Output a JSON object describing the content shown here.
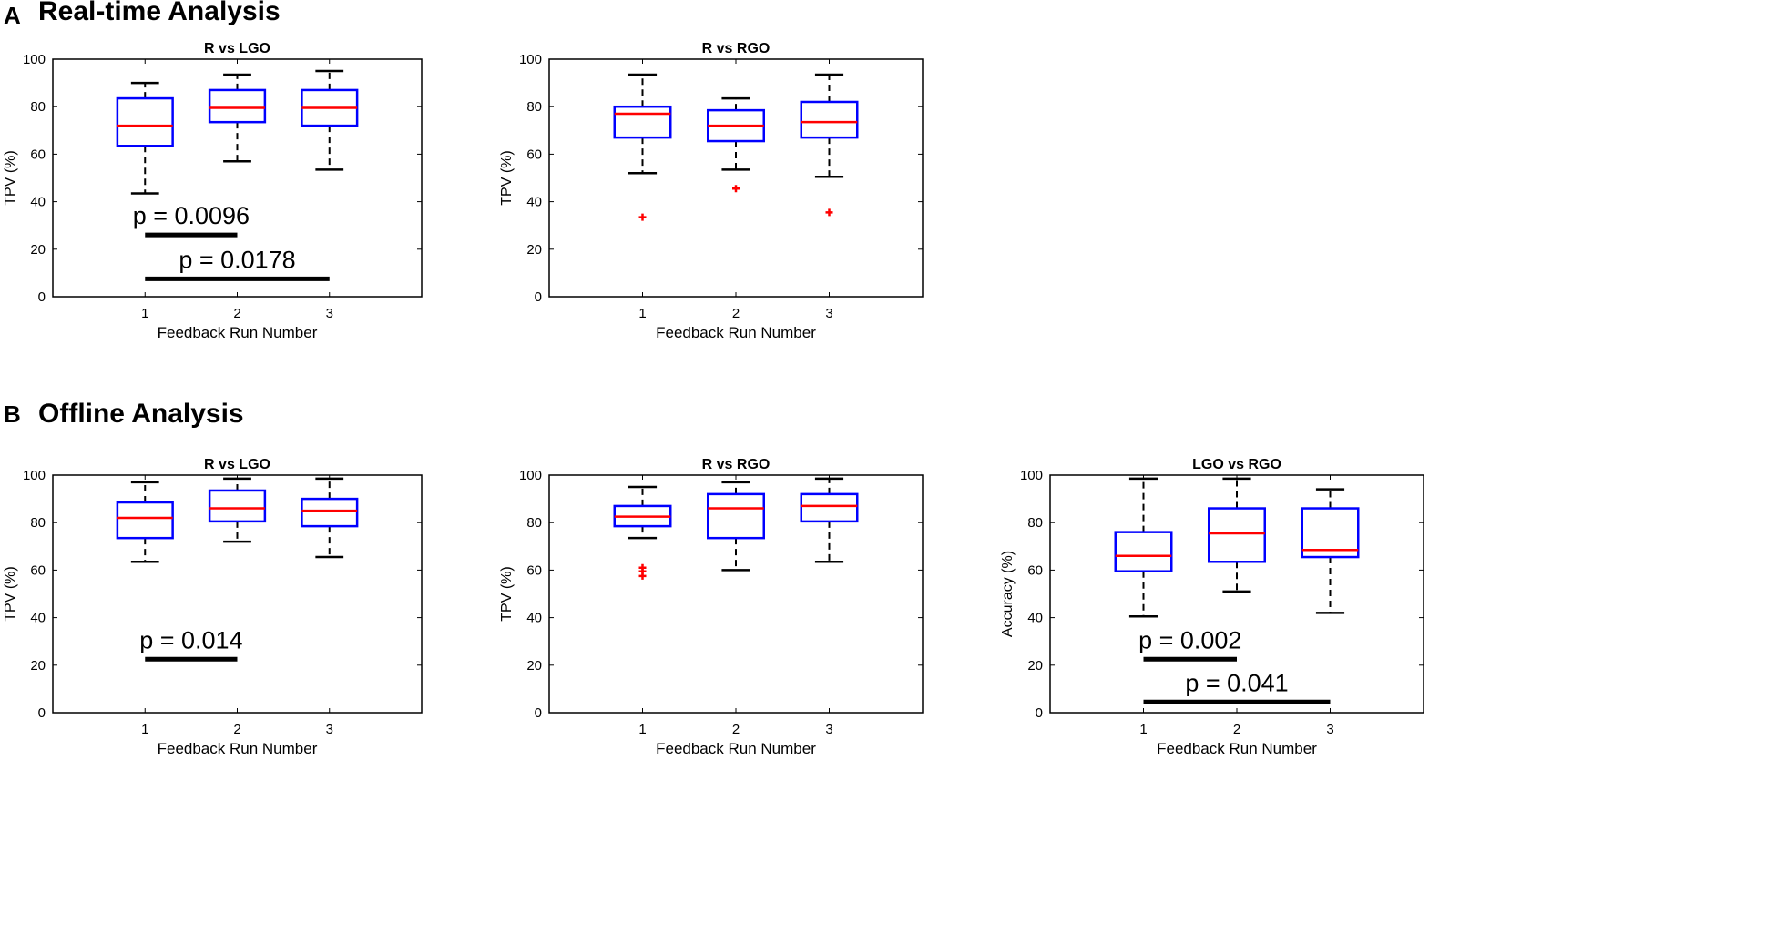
{
  "sections": [
    {
      "letter": "A",
      "title": "Real-time Analysis"
    },
    {
      "letter": "B",
      "title": "Offline Analysis"
    }
  ],
  "colors": {
    "box": "#0000ff",
    "median": "#ff0000",
    "outlier": "#ff0000",
    "whisker": "#000000",
    "axis": "#000000"
  },
  "chart_data": [
    {
      "type": "box",
      "section": "A",
      "title": "R vs LGO",
      "xlabel": "Feedback Run Number",
      "ylabel": "TPV (%)",
      "categories": [
        "1",
        "2",
        "3"
      ],
      "ylim": [
        0,
        100
      ],
      "yticks": [
        0,
        20,
        40,
        60,
        80,
        100
      ],
      "boxes": [
        {
          "min": 43.5,
          "q1": 63.5,
          "median": 72,
          "q3": 83.5,
          "max": 90,
          "outliers": []
        },
        {
          "min": 57,
          "q1": 73.5,
          "median": 79.5,
          "q3": 87,
          "max": 93.5,
          "outliers": []
        },
        {
          "min": 53.5,
          "q1": 72,
          "median": 79.5,
          "q3": 87,
          "max": 95,
          "outliers": []
        }
      ],
      "significance": [
        {
          "label": "p = 0.0096",
          "from": "1",
          "to": "2",
          "y": 26
        },
        {
          "label": "p = 0.0178",
          "from": "1",
          "to": "3",
          "y": 7.5
        }
      ]
    },
    {
      "type": "box",
      "section": "A",
      "title": "R vs RGO",
      "xlabel": "Feedback Run Number",
      "ylabel": "TPV (%)",
      "categories": [
        "1",
        "2",
        "3"
      ],
      "ylim": [
        0,
        100
      ],
      "yticks": [
        0,
        20,
        40,
        60,
        80,
        100
      ],
      "boxes": [
        {
          "min": 52,
          "q1": 67,
          "median": 77,
          "q3": 80,
          "max": 93.5,
          "outliers": [
            33.5
          ]
        },
        {
          "min": 53.5,
          "q1": 65.5,
          "median": 72,
          "q3": 78.5,
          "max": 83.5,
          "outliers": [
            45.5
          ]
        },
        {
          "min": 50.5,
          "q1": 67,
          "median": 73.5,
          "q3": 82,
          "max": 93.5,
          "outliers": [
            35.5
          ]
        }
      ],
      "significance": []
    },
    {
      "type": "box",
      "section": "B",
      "title": "R vs LGO",
      "xlabel": "Feedback Run Number",
      "ylabel": "TPV (%)",
      "categories": [
        "1",
        "2",
        "3"
      ],
      "ylim": [
        0,
        100
      ],
      "yticks": [
        0,
        20,
        40,
        60,
        80,
        100
      ],
      "boxes": [
        {
          "min": 63.5,
          "q1": 73.5,
          "median": 82,
          "q3": 88.5,
          "max": 97,
          "outliers": []
        },
        {
          "min": 72,
          "q1": 80.5,
          "median": 86,
          "q3": 93.5,
          "max": 98.5,
          "outliers": []
        },
        {
          "min": 65.5,
          "q1": 78.5,
          "median": 85,
          "q3": 90,
          "max": 98.5,
          "outliers": []
        }
      ],
      "significance": [
        {
          "label": "p = 0.014",
          "from": "1",
          "to": "2",
          "y": 22.5
        }
      ]
    },
    {
      "type": "box",
      "section": "B",
      "title": "R vs RGO",
      "xlabel": "Feedback Run Number",
      "ylabel": "TPV (%)",
      "categories": [
        "1",
        "2",
        "3"
      ],
      "ylim": [
        0,
        100
      ],
      "yticks": [
        0,
        20,
        40,
        60,
        80,
        100
      ],
      "boxes": [
        {
          "min": 73.5,
          "q1": 78.5,
          "median": 82.5,
          "q3": 87,
          "max": 95,
          "outliers": [
            61,
            59.5,
            57.5
          ]
        },
        {
          "min": 60,
          "q1": 73.5,
          "median": 86,
          "q3": 92,
          "max": 97,
          "outliers": []
        },
        {
          "min": 63.5,
          "q1": 80.5,
          "median": 87,
          "q3": 92,
          "max": 98.5,
          "outliers": []
        }
      ],
      "significance": []
    },
    {
      "type": "box",
      "section": "B",
      "title": "LGO vs RGO",
      "xlabel": "Feedback Run Number",
      "ylabel": "Accuracy (%)",
      "categories": [
        "1",
        "2",
        "3"
      ],
      "ylim": [
        0,
        100
      ],
      "yticks": [
        0,
        20,
        40,
        60,
        80,
        100
      ],
      "boxes": [
        {
          "min": 40.5,
          "q1": 59.5,
          "median": 66,
          "q3": 76,
          "max": 98.5,
          "outliers": []
        },
        {
          "min": 51,
          "q1": 63.5,
          "median": 75.5,
          "q3": 86,
          "max": 98.5,
          "outliers": []
        },
        {
          "min": 42,
          "q1": 65.5,
          "median": 68.5,
          "q3": 86,
          "max": 94,
          "outliers": []
        }
      ],
      "significance": [
        {
          "label": "p = 0.002",
          "from": "1",
          "to": "2",
          "y": 22.5
        },
        {
          "label": "p = 0.041",
          "from": "1",
          "to": "3",
          "y": 4.5
        }
      ]
    }
  ]
}
